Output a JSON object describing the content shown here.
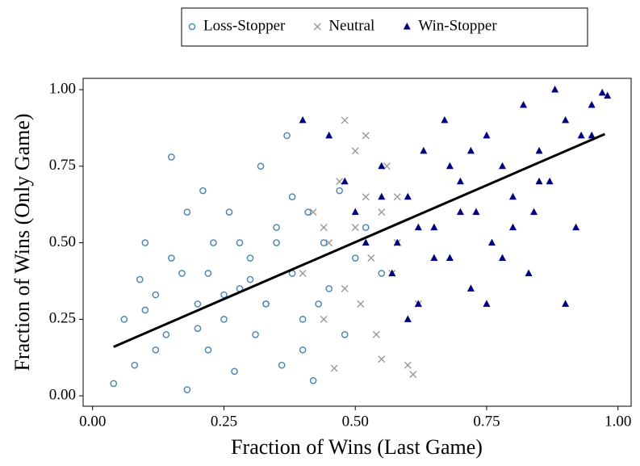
{
  "chart_data": {
    "type": "scatter",
    "xlabel": "Fraction of Wins (Last Game)",
    "ylabel": "Fraction of Wins (Only Game)",
    "xlim": [
      -0.018,
      1.025
    ],
    "ylim": [
      -0.034,
      1.037
    ],
    "xticks": [
      {
        "value": 0,
        "label": "0.00"
      },
      {
        "value": 0.25,
        "label": "0.25"
      },
      {
        "value": 0.5,
        "label": "0.50"
      },
      {
        "value": 0.75,
        "label": "0.75"
      },
      {
        "value": 1,
        "label": "1.00"
      }
    ],
    "yticks": [
      {
        "value": 0,
        "label": "0.00"
      },
      {
        "value": 0.25,
        "label": "0.25"
      },
      {
        "value": 0.5,
        "label": "0.50"
      },
      {
        "value": 0.75,
        "label": "0.75"
      },
      {
        "value": 1,
        "label": "1.00"
      }
    ],
    "grid": false,
    "legend": "top-outside",
    "series": [
      {
        "name": "Loss-Stopper",
        "color": "#4682b4",
        "marker": "circle",
        "x": [
          0.04,
          0.06,
          0.08,
          0.1,
          0.12,
          0.14,
          0.15,
          0.17,
          0.18,
          0.2,
          0.21,
          0.22,
          0.23,
          0.25,
          0.26,
          0.27,
          0.28,
          0.3,
          0.31,
          0.32,
          0.33,
          0.35,
          0.36,
          0.37,
          0.38,
          0.4,
          0.41,
          0.42,
          0.44,
          0.45,
          0.47,
          0.48,
          0.5,
          0.52,
          0.55,
          0.1,
          0.15,
          0.2,
          0.25,
          0.3,
          0.35,
          0.4,
          0.18,
          0.22,
          0.28,
          0.33,
          0.12,
          0.09,
          0.38,
          0.43
        ],
        "values": [
          0.04,
          0.25,
          0.1,
          0.5,
          0.33,
          0.2,
          0.78,
          0.4,
          0.02,
          0.3,
          0.67,
          0.15,
          0.5,
          0.25,
          0.6,
          0.08,
          0.35,
          0.45,
          0.2,
          0.75,
          0.3,
          0.55,
          0.1,
          0.85,
          0.4,
          0.25,
          0.6,
          0.05,
          0.5,
          0.35,
          0.67,
          0.2,
          0.45,
          0.55,
          0.4,
          0.28,
          0.45,
          0.22,
          0.33,
          0.38,
          0.5,
          0.15,
          0.6,
          0.4,
          0.5,
          0.3,
          0.15,
          0.38,
          0.65,
          0.3
        ]
      },
      {
        "name": "Neutral",
        "color": "#999999",
        "marker": "x",
        "x": [
          0.4,
          0.42,
          0.44,
          0.45,
          0.46,
          0.47,
          0.48,
          0.5,
          0.5,
          0.51,
          0.52,
          0.53,
          0.54,
          0.55,
          0.55,
          0.56,
          0.57,
          0.58,
          0.6,
          0.61,
          0.62,
          0.48,
          0.52,
          0.44,
          0.58
        ],
        "values": [
          0.4,
          0.6,
          0.25,
          0.5,
          0.09,
          0.7,
          0.35,
          0.55,
          0.8,
          0.3,
          0.65,
          0.45,
          0.2,
          0.6,
          0.12,
          0.75,
          0.4,
          0.5,
          0.1,
          0.07,
          0.3,
          0.9,
          0.85,
          0.55,
          0.65
        ]
      },
      {
        "name": "Win-Stopper",
        "color": "#000080",
        "marker": "triangle",
        "x": [
          0.4,
          0.45,
          0.48,
          0.5,
          0.52,
          0.55,
          0.57,
          0.6,
          0.62,
          0.63,
          0.65,
          0.67,
          0.68,
          0.7,
          0.72,
          0.73,
          0.75,
          0.76,
          0.78,
          0.8,
          0.82,
          0.83,
          0.85,
          0.87,
          0.88,
          0.9,
          0.92,
          0.93,
          0.95,
          0.97,
          0.98,
          0.6,
          0.65,
          0.7,
          0.75,
          0.8,
          0.85,
          0.9,
          0.55,
          0.62,
          0.72,
          0.78,
          0.84,
          0.68,
          0.58,
          0.95
        ],
        "values": [
          0.9,
          0.85,
          0.7,
          0.6,
          0.5,
          0.75,
          0.4,
          0.65,
          0.3,
          0.8,
          0.55,
          0.9,
          0.45,
          0.7,
          0.35,
          0.6,
          0.85,
          0.5,
          0.75,
          0.65,
          0.95,
          0.4,
          0.8,
          0.7,
          1.0,
          0.9,
          0.55,
          0.85,
          0.95,
          0.99,
          0.98,
          0.25,
          0.45,
          0.6,
          0.3,
          0.55,
          0.7,
          0.3,
          0.65,
          0.55,
          0.8,
          0.45,
          0.6,
          0.75,
          0.5,
          0.85
        ]
      }
    ],
    "fit": {
      "color": "#000000",
      "x": [
        0.04,
        0.975
      ],
      "values": [
        0.16,
        0.855
      ]
    }
  }
}
